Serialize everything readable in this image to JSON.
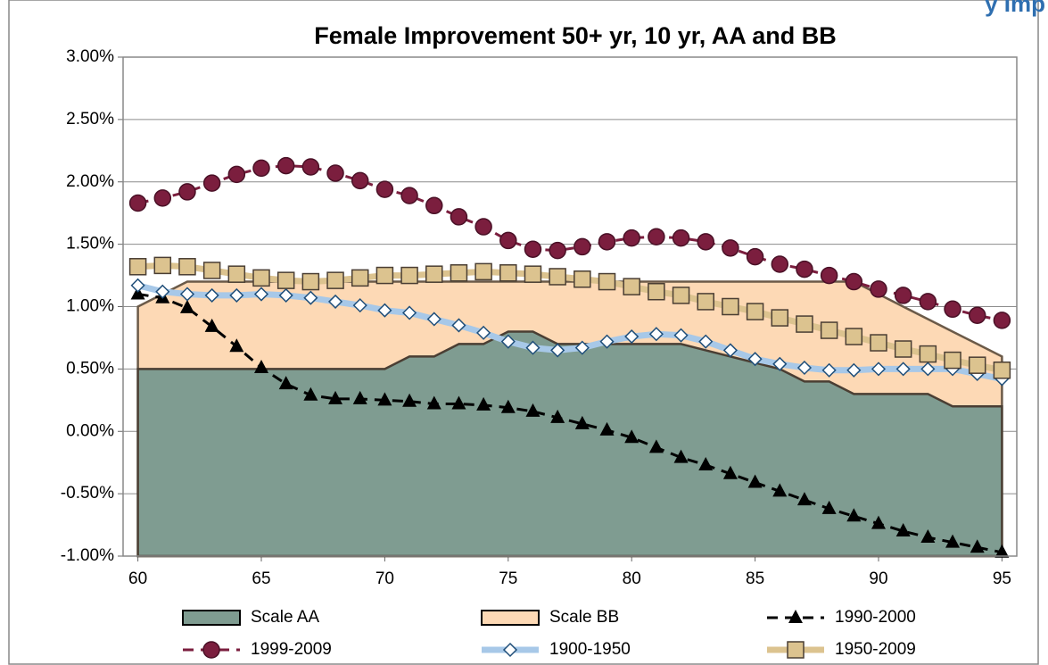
{
  "corner_text": "y Imp",
  "chart_data": {
    "type": "combo",
    "title": "Female Improvement 50+ yr, 10 yr, AA and BB",
    "x": [
      60,
      61,
      62,
      63,
      64,
      65,
      66,
      67,
      68,
      69,
      70,
      71,
      72,
      73,
      74,
      75,
      76,
      77,
      78,
      79,
      80,
      81,
      82,
      83,
      84,
      85,
      86,
      87,
      88,
      89,
      90,
      91,
      92,
      93,
      94,
      95
    ],
    "xlim": [
      59.4,
      95.6
    ],
    "xticks": [
      60,
      65,
      70,
      75,
      80,
      85,
      90,
      95
    ],
    "ylim": [
      -1,
      3
    ],
    "yticks": [
      {
        "value": 3,
        "label": "3.00%"
      },
      {
        "value": 2.5,
        "label": "2.50%"
      },
      {
        "value": 2,
        "label": "2.00%"
      },
      {
        "value": 1.5,
        "label": "1.50%"
      },
      {
        "value": 1,
        "label": "1.00%"
      },
      {
        "value": 0.5,
        "label": "0.50%"
      },
      {
        "value": 0,
        "label": "0.00%"
      },
      {
        "value": -0.5,
        "label": "-0.50%"
      },
      {
        "value": -1,
        "label": "-1.00%"
      }
    ],
    "grid": true,
    "legend": "bottom",
    "series": [
      {
        "name": "Scale AA",
        "kind": "area",
        "color": "#7f9c91",
        "edge": "#4a3e33",
        "values": [
          0.5,
          0.5,
          0.5,
          0.5,
          0.5,
          0.5,
          0.5,
          0.5,
          0.5,
          0.5,
          0.5,
          0.6,
          0.6,
          0.7,
          0.7,
          0.8,
          0.8,
          0.7,
          0.7,
          0.7,
          0.7,
          0.7,
          0.7,
          0.65,
          0.6,
          0.55,
          0.5,
          0.4,
          0.4,
          0.3,
          0.3,
          0.3,
          0.3,
          0.2,
          0.2,
          0.2
        ]
      },
      {
        "name": "Scale BB",
        "kind": "area",
        "color": "#fdd9b5",
        "edge": "#6b5a48",
        "values": [
          1.0,
          1.1,
          1.2,
          1.2,
          1.2,
          1.2,
          1.2,
          1.2,
          1.2,
          1.2,
          1.2,
          1.2,
          1.2,
          1.2,
          1.2,
          1.2,
          1.2,
          1.2,
          1.2,
          1.2,
          1.2,
          1.2,
          1.2,
          1.2,
          1.2,
          1.2,
          1.2,
          1.2,
          1.2,
          1.2,
          1.1,
          1.0,
          0.9,
          0.8,
          0.7,
          0.6
        ]
      },
      {
        "name": "1990-2000",
        "kind": "line",
        "color": "#000000",
        "marker": "triangle",
        "dashed": true,
        "values": [
          1.1,
          1.07,
          0.99,
          0.84,
          0.68,
          0.51,
          0.38,
          0.29,
          0.26,
          0.26,
          0.25,
          0.24,
          0.22,
          0.22,
          0.21,
          0.19,
          0.16,
          0.11,
          0.06,
          0.01,
          -0.05,
          -0.13,
          -0.21,
          -0.27,
          -0.34,
          -0.41,
          -0.48,
          -0.55,
          -0.62,
          -0.68,
          -0.74,
          -0.8,
          -0.85,
          -0.89,
          -0.93,
          -0.97
        ]
      },
      {
        "name": "1999-2009",
        "kind": "line",
        "color": "#7b1e3e",
        "marker": "circle",
        "dashed": true,
        "values": [
          1.83,
          1.87,
          1.92,
          1.99,
          2.06,
          2.11,
          2.13,
          2.12,
          2.07,
          2.01,
          1.94,
          1.89,
          1.81,
          1.72,
          1.64,
          1.53,
          1.46,
          1.45,
          1.48,
          1.52,
          1.55,
          1.56,
          1.55,
          1.52,
          1.47,
          1.4,
          1.34,
          1.3,
          1.25,
          1.2,
          1.14,
          1.09,
          1.04,
          0.98,
          0.93,
          0.89
        ]
      },
      {
        "name": "1900-1950",
        "kind": "line",
        "color": "#a7c8e8",
        "marker": "diamond",
        "dashed": false,
        "values": [
          1.17,
          1.12,
          1.1,
          1.09,
          1.09,
          1.1,
          1.09,
          1.07,
          1.04,
          1.01,
          0.97,
          0.95,
          0.9,
          0.85,
          0.79,
          0.72,
          0.67,
          0.65,
          0.67,
          0.72,
          0.76,
          0.78,
          0.77,
          0.72,
          0.65,
          0.58,
          0.54,
          0.51,
          0.49,
          0.49,
          0.5,
          0.5,
          0.5,
          0.5,
          0.46,
          0.42
        ]
      },
      {
        "name": "1950-2009",
        "kind": "line",
        "color": "#dcc38f",
        "marker": "square",
        "dashed": false,
        "values": [
          1.32,
          1.33,
          1.32,
          1.29,
          1.26,
          1.23,
          1.21,
          1.2,
          1.21,
          1.23,
          1.25,
          1.25,
          1.26,
          1.27,
          1.28,
          1.27,
          1.26,
          1.24,
          1.22,
          1.2,
          1.16,
          1.12,
          1.09,
          1.04,
          1.0,
          0.96,
          0.91,
          0.86,
          0.81,
          0.76,
          0.71,
          0.66,
          0.62,
          0.57,
          0.53,
          0.49
        ]
      }
    ]
  }
}
